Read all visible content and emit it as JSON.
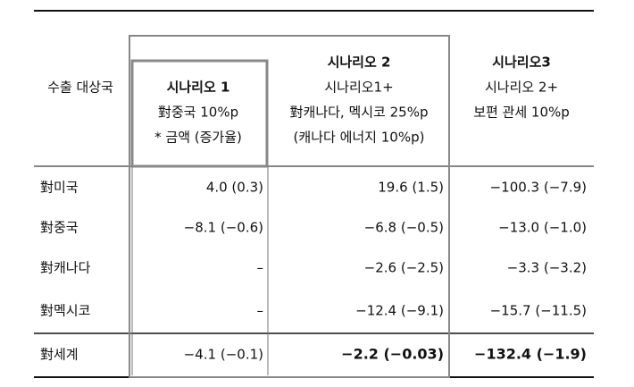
{
  "table": {
    "header": [
      [
        "수출 대상국"
      ],
      [
        "시나리오 1",
        "對중국 10%p",
        "* 금액 (증가율)"
      ],
      [
        "시나리오 2",
        "시나리오1+",
        "對캐나다, 멕시코 25%p",
        "(캐나다 에너지 10%p)"
      ],
      [
        "시나리오3",
        "시나리오 2+",
        "보편 관세 10%p"
      ]
    ],
    "rows": [
      [
        "對미국",
        "4.0 (0.3)",
        "19.6 (1.5)",
        "−100.3 (−7.9)"
      ],
      [
        "對중국",
        "−8.1 (−0.6)",
        "−6.8 (−0.5)",
        "−13.0 (−1.0)"
      ],
      [
        "對캐나다",
        "–",
        "−2.6 (−2.5)",
        "−3.3 (−3.2)"
      ],
      [
        "對멕시코",
        "–",
        "−12.4 (−9.1)",
        "−15.7 (−11.5)"
      ],
      [
        "對세계",
        "−4.1 (−0.1)",
        "−2.2 (−0.03)",
        "−132.4 (−1.9)"
      ]
    ]
  }
}
